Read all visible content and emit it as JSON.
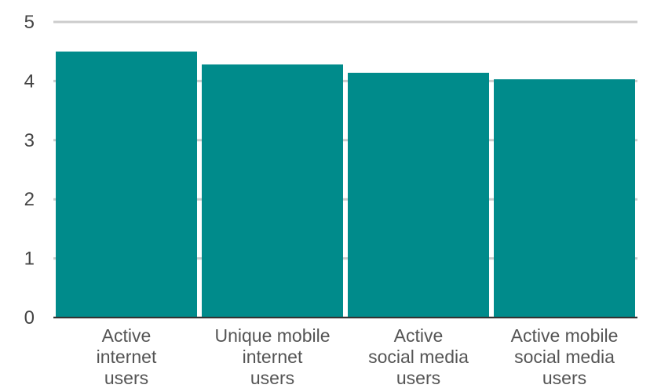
{
  "chart_data": {
    "type": "bar",
    "title": "",
    "xlabel": "",
    "ylabel": "",
    "ylim": [
      0,
      5
    ],
    "yticks": [
      "0",
      "1",
      "2",
      "3",
      "4",
      "5"
    ],
    "grid": true,
    "categories": [
      [
        "Active",
        "internet",
        "users"
      ],
      [
        "Unique mobile",
        "internet",
        "users"
      ],
      [
        "Active",
        "social media",
        "users"
      ],
      [
        "Active mobile",
        "social media",
        "users"
      ]
    ],
    "values": [
      4.5,
      4.28,
      4.14,
      4.03
    ],
    "colors": {
      "bar": "#008b8b",
      "grid": "#cccccc",
      "axis": "#333333"
    }
  }
}
